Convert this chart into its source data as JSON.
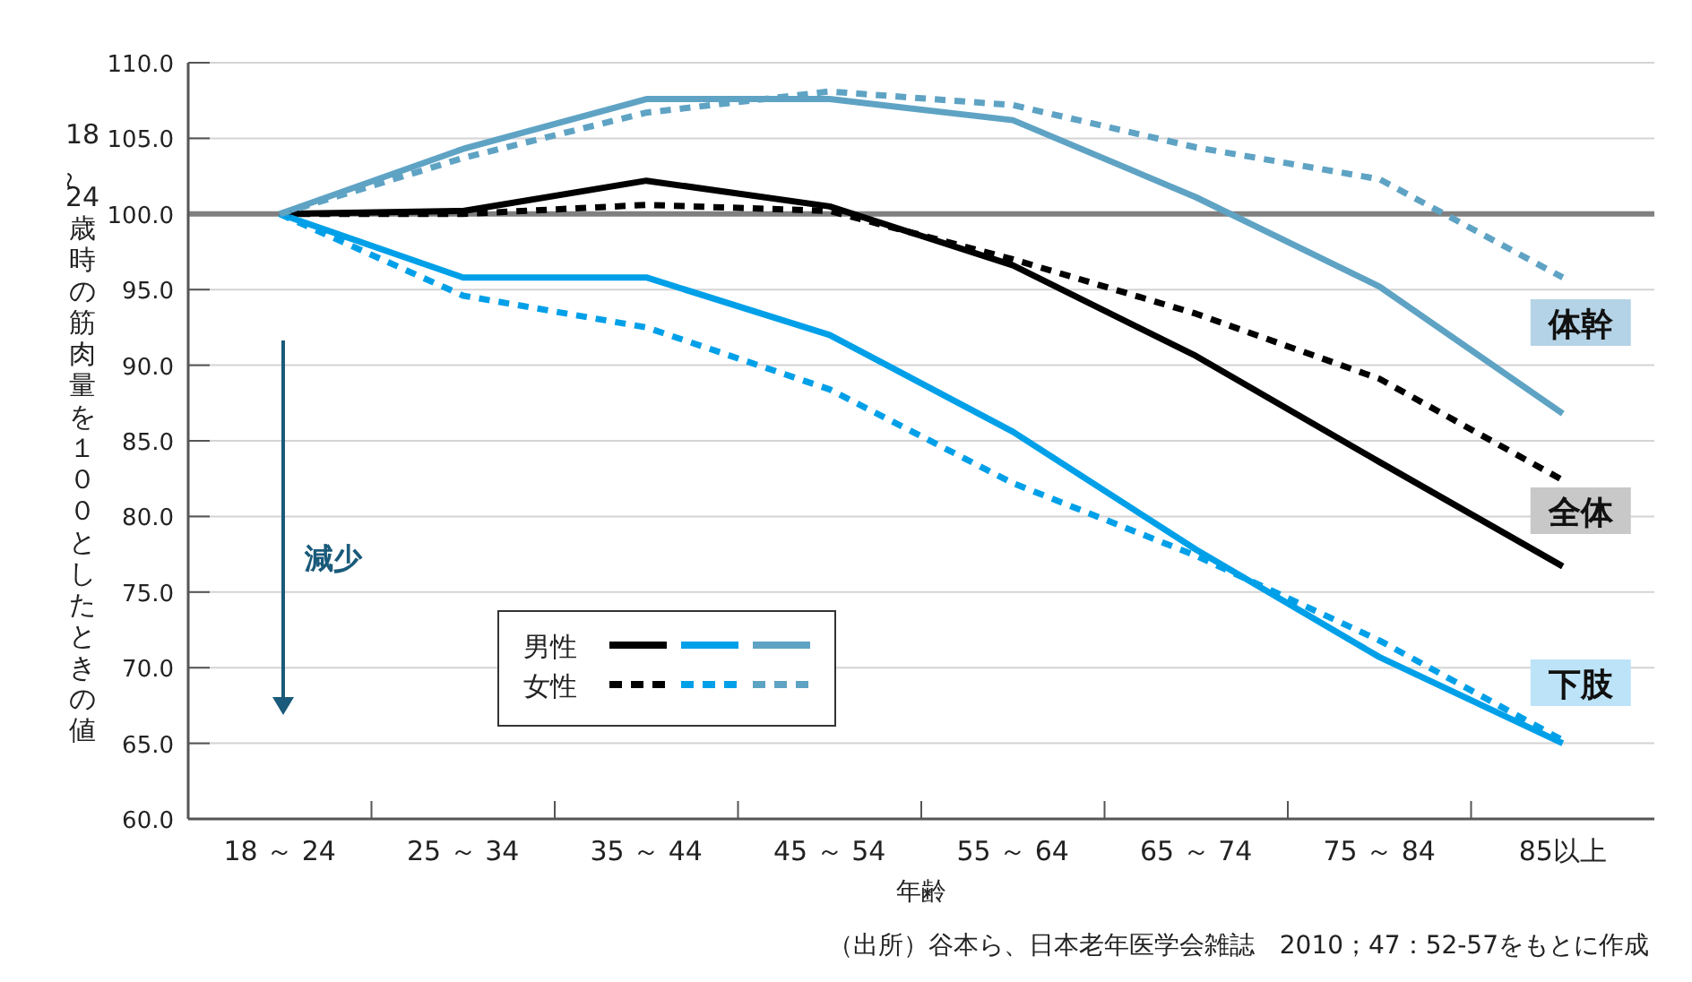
{
  "chart_data": {
    "type": "line",
    "xlabel": "年齢",
    "ylabel": "18～24歳時の筋肉量を１００としたときの値",
    "categories": [
      "18 ～ 24",
      "25 ～ 34",
      "35 ～ 44",
      "45 ～ 54",
      "55 ～ 64",
      "65 ～ 74",
      "75 ～ 84",
      "85以上"
    ],
    "series": [
      {
        "name": "男性",
        "color": "#000000",
        "line_style": "solid",
        "values": [
          100,
          100.2,
          102.2,
          100.5,
          96.6,
          90.6,
          83.6,
          76.7
        ]
      },
      {
        "color": "#00a0e9",
        "line_style": "solid",
        "values": [
          100,
          95.8,
          95.8,
          92.0,
          85.6,
          77.8,
          70.7,
          65.0
        ]
      },
      {
        "color": "#5fa3c4",
        "line_style": "solid",
        "values": [
          100,
          104.3,
          107.6,
          107.6,
          106.2,
          101.1,
          95.2,
          86.8
        ]
      },
      {
        "name": "女性",
        "color": "#000000",
        "line_style": "dashed",
        "values": [
          100,
          100.0,
          100.6,
          100.2,
          97.0,
          93.4,
          89.1,
          82.4
        ]
      },
      {
        "color": "#00a0e9",
        "line_style": "dashed",
        "values": [
          100,
          94.6,
          92.5,
          88.4,
          82.2,
          77.4,
          71.8,
          65.2
        ]
      },
      {
        "color": "#5fa3c4",
        "line_style": "dashed",
        "values": [
          100,
          103.7,
          106.7,
          108.1,
          107.2,
          104.4,
          102.3,
          95.8
        ]
      }
    ],
    "ylim": [
      60,
      110
    ],
    "yticks": [
      {
        "value": 60,
        "label": "60.0"
      },
      {
        "value": 65,
        "label": "65.0"
      },
      {
        "value": 70,
        "label": "70.0"
      },
      {
        "value": 75,
        "label": "75.0"
      },
      {
        "value": 80,
        "label": "80.0"
      },
      {
        "value": 85,
        "label": "85.0"
      },
      {
        "value": 90,
        "label": "90.0"
      },
      {
        "value": 95,
        "label": "95.0"
      },
      {
        "value": 100,
        "label": "100.0"
      },
      {
        "value": 105,
        "label": "105.0"
      },
      {
        "value": 110,
        "label": "110.0"
      }
    ],
    "grid": "y",
    "marker": "none",
    "legend": "bottom left",
    "ref_lines": [
      {
        "axis": "y",
        "value": 100,
        "color": "#808080"
      }
    ],
    "annotations": [
      "体幹",
      "全体",
      "下肢",
      "減少",
      "（出所）谷本ら、日本老年医学会雑誌　2010；47：52-57をもとに作成"
    ]
  }
}
